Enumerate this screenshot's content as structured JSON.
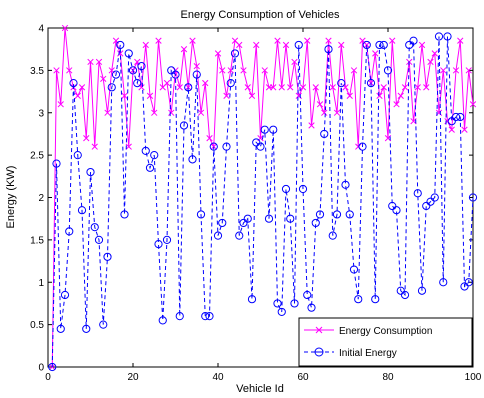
{
  "chart_data": {
    "type": "line",
    "title": "Energy Consumption of Vehicles",
    "xlabel": "Vehicle Id",
    "ylabel": "Energy (KW)",
    "xlim": [
      0,
      100
    ],
    "ylim": [
      0,
      4
    ],
    "xticks": [
      "0",
      "20",
      "40",
      "60",
      "80",
      "100"
    ],
    "yticks": [
      "0",
      "0.5",
      "1",
      "1.5",
      "2",
      "2.5",
      "3",
      "3.5",
      "4"
    ],
    "grid": false,
    "legend_position": "bottom-right",
    "x": [
      1,
      2,
      3,
      4,
      5,
      6,
      7,
      8,
      9,
      10,
      11,
      12,
      13,
      14,
      15,
      16,
      17,
      18,
      19,
      20,
      21,
      22,
      23,
      24,
      25,
      26,
      27,
      28,
      29,
      30,
      31,
      32,
      33,
      34,
      35,
      36,
      37,
      38,
      39,
      40,
      41,
      42,
      43,
      44,
      45,
      46,
      47,
      48,
      49,
      50,
      51,
      52,
      53,
      54,
      55,
      56,
      57,
      58,
      59,
      60,
      61,
      62,
      63,
      64,
      65,
      66,
      67,
      68,
      69,
      70,
      71,
      72,
      73,
      74,
      75,
      76,
      77,
      78,
      79,
      80,
      81,
      82,
      83,
      84,
      85,
      86,
      87,
      88,
      89,
      90,
      91,
      92,
      93,
      94,
      95,
      96,
      97,
      98,
      99,
      100
    ],
    "series": [
      {
        "name": "Energy Consumption",
        "color": "#ff00ff",
        "line": "solid",
        "marker": "x",
        "values": [
          0.0,
          3.5,
          3.1,
          4.0,
          3.5,
          3.3,
          3.2,
          3.3,
          2.7,
          3.6,
          2.6,
          3.6,
          3.4,
          3.0,
          3.5,
          3.85,
          3.7,
          3.2,
          2.6,
          3.5,
          3.6,
          3.3,
          3.8,
          3.2,
          3.0,
          3.85,
          3.3,
          3.35,
          3.0,
          3.5,
          3.3,
          3.75,
          3.3,
          3.85,
          3.55,
          3.0,
          3.35,
          2.7,
          2.6,
          3.7,
          3.5,
          3.2,
          3.5,
          3.85,
          3.8,
          3.5,
          3.3,
          3.2,
          3.8,
          2.7,
          3.5,
          3.3,
          3.3,
          3.85,
          3.3,
          3.8,
          3.3,
          3.6,
          3.2,
          3.3,
          3.85,
          2.85,
          3.3,
          3.1,
          3.0,
          3.85,
          3.3,
          3.0,
          3.8,
          3.3,
          3.2,
          3.5,
          2.6,
          3.85,
          3.8,
          3.35,
          3.7,
          3.2,
          3.3,
          2.7,
          3.85,
          3.1,
          3.2,
          3.3,
          3.6,
          2.9,
          3.3,
          3.8,
          3.3,
          3.6,
          3.7,
          3.0,
          3.5,
          2.9,
          2.8,
          3.5,
          3.85,
          2.8,
          3.5,
          3.1
        ]
      },
      {
        "name": "Initial Energy",
        "color": "#0000ff",
        "line": "dashed",
        "marker": "circle",
        "values": [
          0.0,
          2.4,
          0.45,
          0.85,
          1.6,
          3.35,
          2.5,
          1.85,
          0.45,
          2.3,
          1.65,
          1.5,
          0.5,
          1.3,
          3.3,
          3.45,
          3.8,
          1.8,
          3.7,
          3.5,
          3.35,
          3.55,
          2.55,
          2.35,
          2.5,
          1.45,
          0.55,
          1.5,
          3.5,
          3.45,
          0.6,
          2.85,
          3.3,
          2.45,
          3.45,
          1.8,
          0.6,
          0.6,
          2.6,
          1.55,
          1.7,
          2.6,
          3.35,
          3.7,
          1.55,
          1.7,
          1.75,
          0.8,
          2.65,
          2.6,
          2.8,
          1.75,
          2.8,
          0.75,
          0.65,
          2.1,
          1.75,
          0.75,
          3.8,
          2.1,
          0.85,
          0.7,
          1.7,
          1.8,
          2.75,
          3.75,
          1.55,
          1.8,
          3.35,
          2.15,
          1.8,
          1.15,
          0.8,
          2.6,
          3.8,
          3.35,
          0.8,
          3.8,
          3.8,
          3.5,
          1.9,
          1.85,
          0.9,
          0.85,
          3.8,
          3.85,
          2.05,
          0.9,
          1.9,
          1.95,
          2.0,
          3.9,
          1.0,
          3.9,
          2.9,
          2.95,
          2.95,
          0.95,
          1.0,
          2.0
        ]
      }
    ]
  }
}
